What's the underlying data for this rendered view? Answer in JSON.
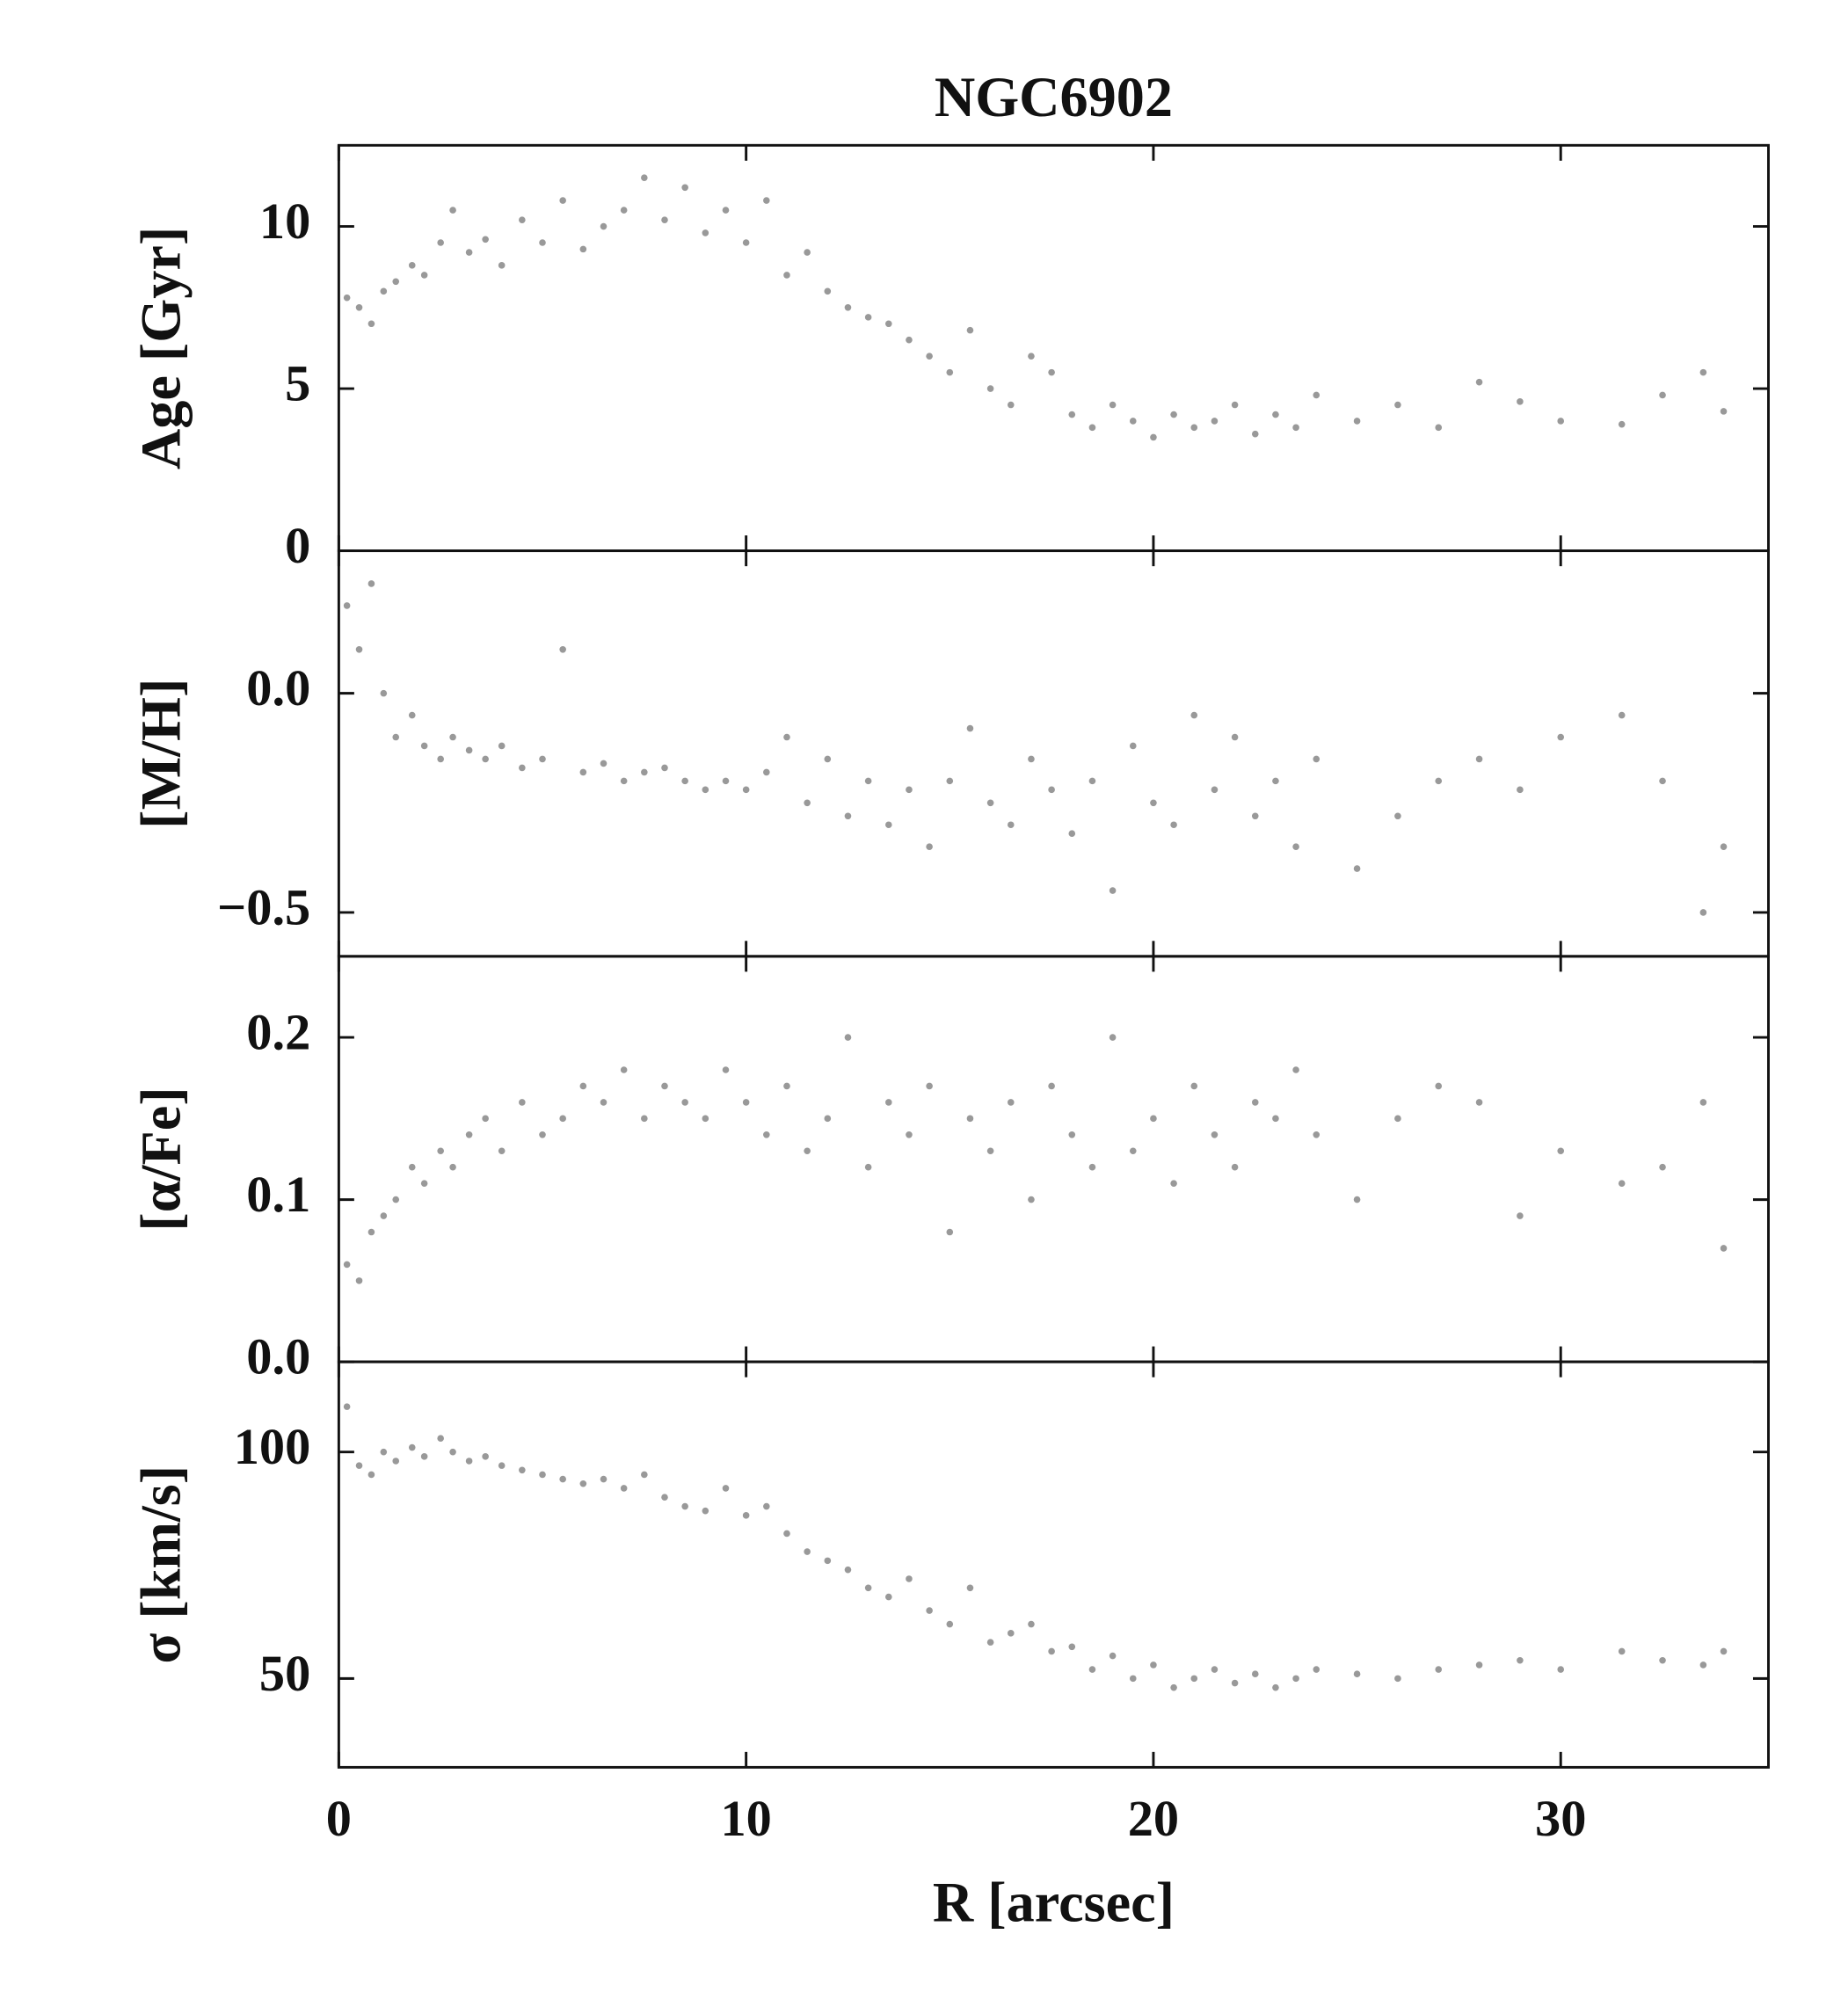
{
  "chart_data": [
    {
      "type": "scatter",
      "title": "NGC6902",
      "ylabel": "Age [Gyr]",
      "color": "#555555",
      "x": [
        0.2,
        0.5,
        0.8,
        1.1,
        1.4,
        1.8,
        2.1,
        2.5,
        2.8,
        3.2,
        3.6,
        4.0,
        4.5,
        5.0,
        5.5,
        6.0,
        6.5,
        7.0,
        7.5,
        8.0,
        8.5,
        9.0,
        9.5,
        10.0,
        10.5,
        11.0,
        11.5,
        12.0,
        12.5,
        13.0,
        13.5,
        14.0,
        14.5,
        15.0,
        15.5,
        16.0,
        16.5,
        17.0,
        17.5,
        18.0,
        18.5,
        19.0,
        19.5,
        20.0,
        20.5,
        21.0,
        21.5,
        22.0,
        22.5,
        23.0,
        23.5,
        24.0,
        25.0,
        26.0,
        27.0,
        28.0,
        29.0,
        30.0,
        31.5,
        32.5,
        33.5,
        34.0
      ],
      "y": [
        7.8,
        7.5,
        7.0,
        8.0,
        8.3,
        8.8,
        8.5,
        9.5,
        10.5,
        9.2,
        9.6,
        8.8,
        10.2,
        9.5,
        10.8,
        9.3,
        10.0,
        10.5,
        11.5,
        10.2,
        11.2,
        9.8,
        10.5,
        9.5,
        10.8,
        8.5,
        9.2,
        8.0,
        7.5,
        7.2,
        7.0,
        6.5,
        6.0,
        5.5,
        6.8,
        5.0,
        4.5,
        6.0,
        5.5,
        4.2,
        3.8,
        4.5,
        4.0,
        3.5,
        4.2,
        3.8,
        4.0,
        4.5,
        3.6,
        4.2,
        3.8,
        4.8,
        4.0,
        4.5,
        3.8,
        5.2,
        4.6,
        4.0,
        3.9,
        4.8,
        5.5,
        4.3
      ],
      "xlim": [
        0,
        35.1
      ],
      "xticks": [
        0,
        10,
        20,
        30
      ],
      "ylim": [
        0,
        12.5
      ],
      "yticks": [
        0,
        5,
        10
      ]
    },
    {
      "type": "scatter",
      "ylabel": "[M/H]",
      "color": "#555555",
      "x": [
        0.2,
        0.5,
        0.8,
        1.1,
        1.4,
        1.8,
        2.1,
        2.5,
        2.8,
        3.2,
        3.6,
        4.0,
        4.5,
        5.0,
        5.5,
        6.0,
        6.5,
        7.0,
        7.5,
        8.0,
        8.5,
        9.0,
        9.5,
        10.0,
        10.5,
        11.0,
        11.5,
        12.0,
        12.5,
        13.0,
        13.5,
        14.0,
        14.5,
        15.0,
        15.5,
        16.0,
        16.5,
        17.0,
        17.5,
        18.0,
        18.5,
        19.0,
        19.5,
        20.0,
        20.5,
        21.0,
        21.5,
        22.0,
        22.5,
        23.0,
        23.5,
        24.0,
        25.0,
        26.0,
        27.0,
        28.0,
        29.0,
        30.0,
        31.5,
        32.5,
        33.5,
        34.0
      ],
      "y": [
        0.2,
        0.1,
        0.25,
        0.0,
        -0.1,
        -0.05,
        -0.12,
        -0.15,
        -0.1,
        -0.13,
        -0.15,
        -0.12,
        -0.17,
        -0.15,
        0.1,
        -0.18,
        -0.16,
        -0.2,
        -0.18,
        -0.17,
        -0.2,
        -0.22,
        -0.2,
        -0.22,
        -0.18,
        -0.1,
        -0.25,
        -0.15,
        -0.28,
        -0.2,
        -0.3,
        -0.22,
        -0.35,
        -0.2,
        -0.08,
        -0.25,
        -0.3,
        -0.15,
        -0.22,
        -0.32,
        -0.2,
        -0.45,
        -0.12,
        -0.25,
        -0.3,
        -0.05,
        -0.22,
        -0.1,
        -0.28,
        -0.2,
        -0.35,
        -0.15,
        -0.4,
        -0.28,
        -0.2,
        -0.15,
        -0.22,
        -0.1,
        -0.05,
        -0.2,
        -0.5,
        -0.35
      ],
      "xlim": [
        0,
        35.1
      ],
      "xticks": [
        0,
        10,
        20,
        30
      ],
      "ylim": [
        -0.6,
        0.325
      ],
      "yticks": [
        {
          "value": -0.5,
          "label": "−0.5"
        },
        {
          "value": 0,
          "label": "0.0"
        }
      ]
    },
    {
      "type": "scatter",
      "ylabel": "[α/Fe]",
      "color": "#555555",
      "x": [
        0.2,
        0.5,
        0.8,
        1.1,
        1.4,
        1.8,
        2.1,
        2.5,
        2.8,
        3.2,
        3.6,
        4.0,
        4.5,
        5.0,
        5.5,
        6.0,
        6.5,
        7.0,
        7.5,
        8.0,
        8.5,
        9.0,
        9.5,
        10.0,
        10.5,
        11.0,
        11.5,
        12.0,
        12.5,
        13.0,
        13.5,
        14.0,
        14.5,
        15.0,
        15.5,
        16.0,
        16.5,
        17.0,
        17.5,
        18.0,
        18.5,
        19.0,
        19.5,
        20.0,
        20.5,
        21.0,
        21.5,
        22.0,
        22.5,
        23.0,
        23.5,
        24.0,
        25.0,
        26.0,
        27.0,
        28.0,
        29.0,
        30.0,
        31.5,
        32.5,
        33.5,
        34.0
      ],
      "y": [
        0.06,
        0.05,
        0.08,
        0.09,
        0.1,
        0.12,
        0.11,
        0.13,
        0.12,
        0.14,
        0.15,
        0.13,
        0.16,
        0.14,
        0.15,
        0.17,
        0.16,
        0.18,
        0.15,
        0.17,
        0.16,
        0.15,
        0.18,
        0.16,
        0.14,
        0.17,
        0.13,
        0.15,
        0.2,
        0.12,
        0.16,
        0.14,
        0.17,
        0.08,
        0.15,
        0.13,
        0.16,
        0.1,
        0.17,
        0.14,
        0.12,
        0.2,
        0.13,
        0.15,
        0.11,
        0.17,
        0.14,
        0.12,
        0.16,
        0.15,
        0.18,
        0.14,
        0.1,
        0.15,
        0.17,
        0.16,
        0.09,
        0.13,
        0.11,
        0.12,
        0.16,
        0.07
      ],
      "xlim": [
        0,
        35.1
      ],
      "xticks": [
        0,
        10,
        20,
        30
      ],
      "ylim": [
        0,
        0.25
      ],
      "yticks": [
        {
          "value": 0,
          "label": "0.0"
        },
        0.1,
        0.2
      ]
    },
    {
      "type": "scatter",
      "ylabel": "σ [km/s]",
      "xlabel": "R [arcsec]",
      "color": "#555555",
      "x": [
        0.2,
        0.5,
        0.8,
        1.1,
        1.4,
        1.8,
        2.1,
        2.5,
        2.8,
        3.2,
        3.6,
        4.0,
        4.5,
        5.0,
        5.5,
        6.0,
        6.5,
        7.0,
        7.5,
        8.0,
        8.5,
        9.0,
        9.5,
        10.0,
        10.5,
        11.0,
        11.5,
        12.0,
        12.5,
        13.0,
        13.5,
        14.0,
        14.5,
        15.0,
        15.5,
        16.0,
        16.5,
        17.0,
        17.5,
        18.0,
        18.5,
        19.0,
        19.5,
        20.0,
        20.5,
        21.0,
        21.5,
        22.0,
        22.5,
        23.0,
        23.5,
        24.0,
        25.0,
        26.0,
        27.0,
        28.0,
        29.0,
        30.0,
        31.5,
        32.5,
        33.5,
        34.0
      ],
      "y": [
        110,
        97,
        95,
        100,
        98,
        101,
        99,
        103,
        100,
        98,
        99,
        97,
        96,
        95,
        94,
        93,
        94,
        92,
        95,
        90,
        88,
        87,
        92,
        86,
        88,
        82,
        78,
        76,
        74,
        70,
        68,
        72,
        65,
        62,
        70,
        58,
        60,
        62,
        56,
        57,
        52,
        55,
        50,
        53,
        48,
        50,
        52,
        49,
        51,
        48,
        50,
        52,
        51,
        50,
        52,
        53,
        54,
        52,
        56,
        54,
        53,
        56
      ],
      "xlim": [
        0,
        35.1
      ],
      "xticks": [
        0,
        10,
        20,
        30
      ],
      "ylim": [
        30.4,
        119.9
      ],
      "yticks": [
        50,
        100
      ]
    }
  ]
}
